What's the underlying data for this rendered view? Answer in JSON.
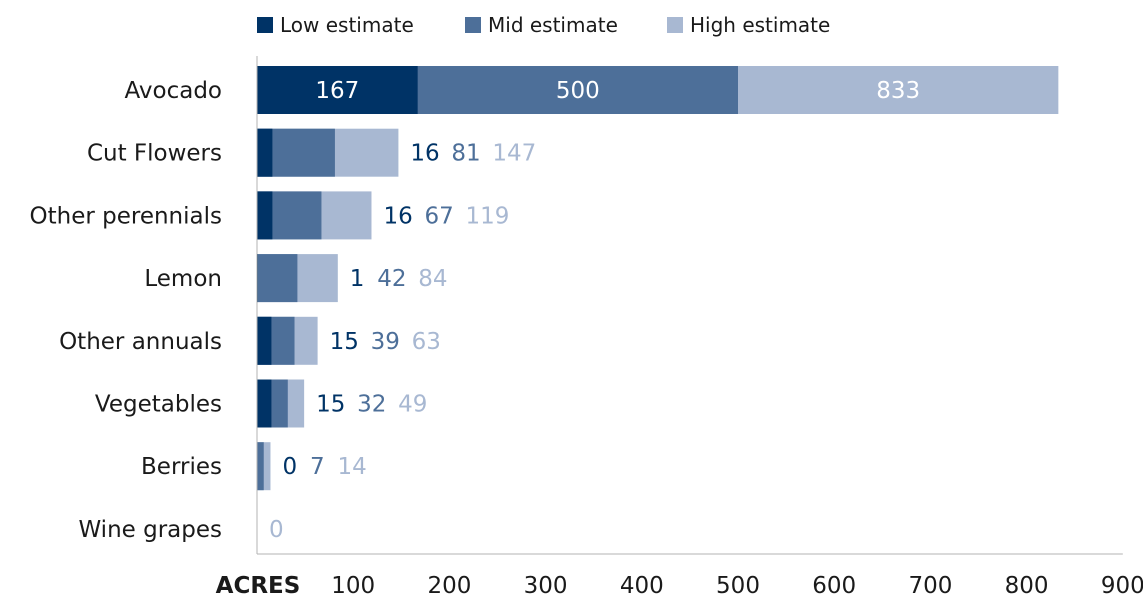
{
  "chart_data": {
    "type": "bar",
    "orientation": "horizontal",
    "layout": "overlapping-cumulative",
    "categories": [
      "Avocado",
      "Cut Flowers",
      "Other perennials",
      "Lemon",
      "Other annuals",
      "Vegetables",
      "Berries",
      "Wine grapes"
    ],
    "series": [
      {
        "name": "Low estimate",
        "color": "#003366",
        "values": [
          167,
          16,
          16,
          1,
          15,
          15,
          0,
          0
        ]
      },
      {
        "name": "Mid estimate",
        "color": "#4d6f99",
        "values": [
          500,
          81,
          67,
          42,
          39,
          32,
          7,
          0
        ]
      },
      {
        "name": "High estimate",
        "color": "#a8b8d2",
        "values": [
          833,
          147,
          119,
          84,
          63,
          49,
          14,
          0
        ]
      }
    ],
    "data_labels": [
      [
        "167",
        "500",
        "833"
      ],
      [
        "16",
        "81",
        "147"
      ],
      [
        "16",
        "67",
        "119"
      ],
      [
        "1",
        "42",
        "84"
      ],
      [
        "15",
        "39",
        "63"
      ],
      [
        "15",
        "32",
        "49"
      ],
      [
        "0",
        "7",
        "14"
      ],
      [
        "",
        "",
        "0"
      ]
    ],
    "xlabel": "ACRES",
    "x_ticks": [
      100,
      200,
      300,
      400,
      500,
      600,
      700,
      800,
      900
    ],
    "xlim": [
      0,
      900
    ],
    "grid": false,
    "legend_position": "top"
  }
}
